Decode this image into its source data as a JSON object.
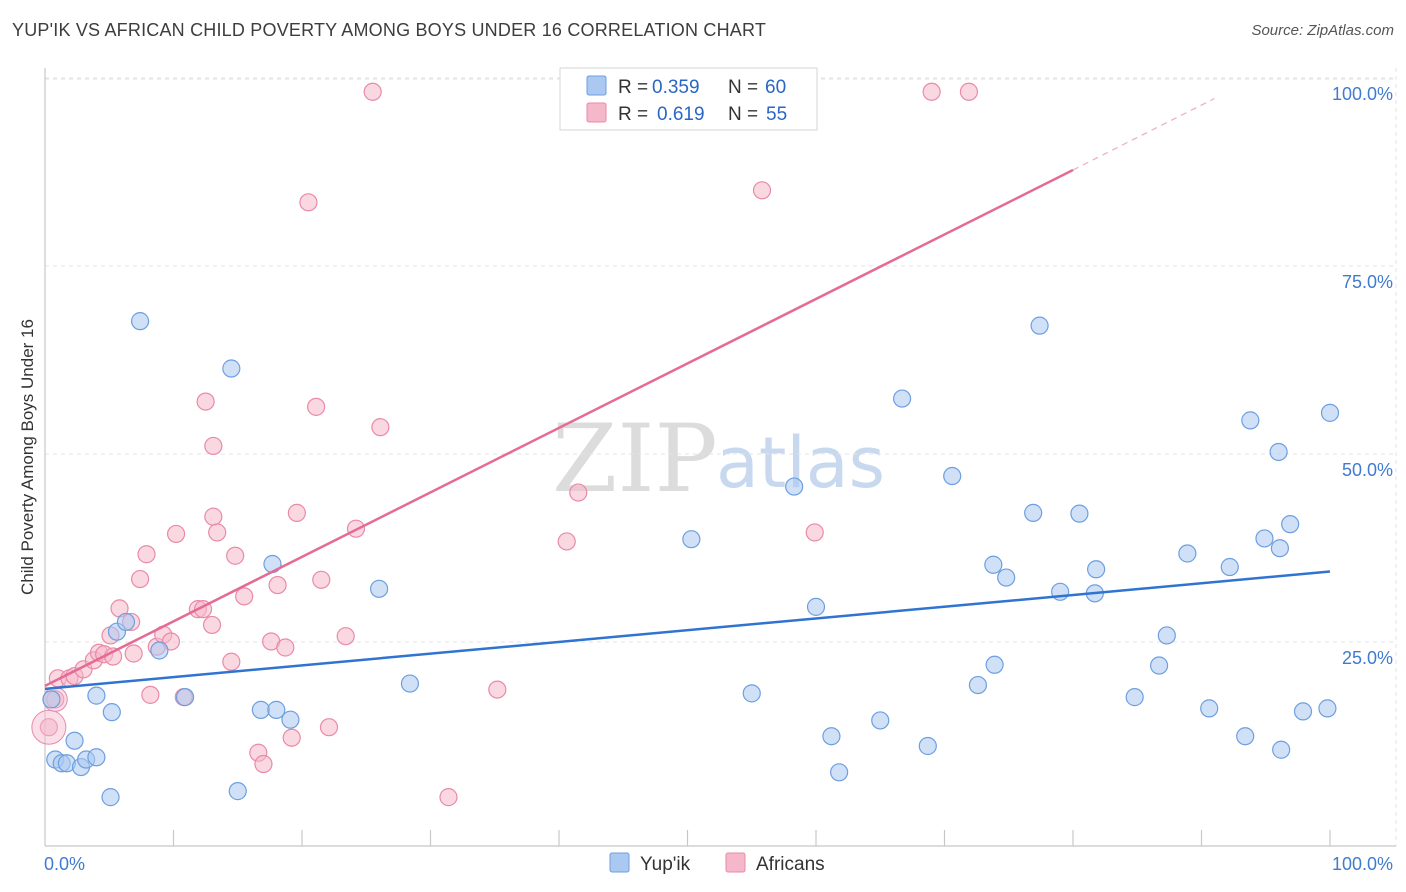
{
  "header": {
    "title": "YUP'IK VS AFRICAN CHILD POVERTY AMONG BOYS UNDER 16 CORRELATION CHART",
    "source": "Source: ZipAtlas.com"
  },
  "watermark": {
    "zip": "ZIP",
    "atlas": "atlas"
  },
  "colors": {
    "blue_fill": "#aac8f0",
    "blue_stroke": "#6d9fe0",
    "blue_line": "#2f74d0",
    "pink_fill": "#f5b8cb",
    "pink_stroke": "#e98aa8",
    "pink_line": "#e46b95",
    "tick_text": "#3f7bd0"
  },
  "legend": {
    "rows": [
      {
        "r_label": "R =",
        "r_value": "0.359",
        "n_label": "N =",
        "n_value": "60"
      },
      {
        "r_label": "R =",
        "r_value": "0.619",
        "n_label": "N =",
        "n_value": "55"
      }
    ]
  },
  "bottom_legend": [
    "Yup'ik",
    "Africans"
  ],
  "chart_data": {
    "type": "scatter",
    "title": "YUP'IK VS AFRICAN CHILD POVERTY AMONG BOYS UNDER 16 CORRELATION CHART",
    "xlabel": "",
    "ylabel": "Child Poverty Among Boys Under 16",
    "xlim": [
      0,
      100
    ],
    "ylim": [
      0,
      102
    ],
    "x_tick_labels": [
      "0.0%",
      "100.0%"
    ],
    "y_ticks": [
      25,
      50,
      75,
      100
    ],
    "y_tick_labels": [
      "25.0%",
      "50.0%",
      "75.0%",
      "100.0%"
    ],
    "grid": true,
    "legend_position": "top-center",
    "series": [
      {
        "name": "Yup'ik",
        "r": 0.359,
        "n": 60,
        "trend": {
          "x": [
            0,
            100
          ],
          "y": [
            20.9,
            36.5
          ]
        },
        "points": [
          [
            0.5,
            19.5
          ],
          [
            0.8,
            11.5
          ],
          [
            1.3,
            11
          ],
          [
            1.7,
            11
          ],
          [
            2.3,
            14
          ],
          [
            2.8,
            10.5
          ],
          [
            3.2,
            11.5
          ],
          [
            4,
            11.8
          ],
          [
            4,
            20
          ],
          [
            5.1,
            6.5
          ],
          [
            5.2,
            17.8
          ],
          [
            5.6,
            28.5
          ],
          [
            6.3,
            29.8
          ],
          [
            7.4,
            69.8
          ],
          [
            8.9,
            26
          ],
          [
            10.9,
            19.8
          ],
          [
            14.5,
            63.5
          ],
          [
            15,
            7.3
          ],
          [
            16.8,
            18.1
          ],
          [
            17.7,
            37.5
          ],
          [
            18,
            18.1
          ],
          [
            19.1,
            16.8
          ],
          [
            26,
            34.2
          ],
          [
            28.4,
            21.6
          ],
          [
            50.3,
            40.8
          ],
          [
            55,
            20.3
          ],
          [
            58.3,
            47.8
          ],
          [
            60,
            31.8
          ],
          [
            61.2,
            14.6
          ],
          [
            61.8,
            9.8
          ],
          [
            65,
            16.7
          ],
          [
            66.7,
            59.5
          ],
          [
            68.7,
            13.3
          ],
          [
            70.6,
            49.2
          ],
          [
            72.6,
            21.4
          ],
          [
            73.8,
            37.4
          ],
          [
            73.9,
            24.1
          ],
          [
            74.8,
            35.7
          ],
          [
            76.9,
            44.3
          ],
          [
            77.4,
            69.2
          ],
          [
            79,
            33.8
          ],
          [
            80.5,
            44.2
          ],
          [
            81.7,
            33.6
          ],
          [
            81.8,
            36.8
          ],
          [
            84.8,
            19.8
          ],
          [
            86.7,
            24
          ],
          [
            87.3,
            28
          ],
          [
            88.9,
            38.9
          ],
          [
            90.6,
            18.3
          ],
          [
            92.2,
            37.1
          ],
          [
            93.4,
            14.6
          ],
          [
            93.8,
            56.6
          ],
          [
            94.9,
            40.9
          ],
          [
            96,
            52.4
          ],
          [
            96.1,
            39.6
          ],
          [
            96.2,
            12.8
          ],
          [
            96.9,
            42.8
          ],
          [
            97.9,
            17.9
          ],
          [
            99.8,
            18.3
          ],
          [
            100,
            57.6
          ]
        ]
      },
      {
        "name": "Africans",
        "r": 0.619,
        "n": 55,
        "trend": {
          "x": [
            0,
            80
          ],
          "y": [
            21.3,
            89.9
          ]
        },
        "trend_dashed": {
          "x": [
            80,
            91
          ],
          "y": [
            89.9,
            99.4
          ]
        },
        "points": [
          [
            0.3,
            15.8
          ],
          [
            0.8,
            19.5
          ],
          [
            1,
            22.3
          ],
          [
            1.9,
            22.3
          ],
          [
            2.3,
            22.6
          ],
          [
            3,
            23.5
          ],
          [
            3.8,
            24.7
          ],
          [
            4.2,
            25.7
          ],
          [
            4.6,
            25.5
          ],
          [
            5.1,
            28
          ],
          [
            5.3,
            25.2
          ],
          [
            5.8,
            31.6
          ],
          [
            6.7,
            29.8
          ],
          [
            6.9,
            25.6
          ],
          [
            7.4,
            35.5
          ],
          [
            7.9,
            38.8
          ],
          [
            8.2,
            20.1
          ],
          [
            8.7,
            26.5
          ],
          [
            9.2,
            28.1
          ],
          [
            9.8,
            27.2
          ],
          [
            10.2,
            41.5
          ],
          [
            10.8,
            19.8
          ],
          [
            11.9,
            31.5
          ],
          [
            12.3,
            31.5
          ],
          [
            12.5,
            59.1
          ],
          [
            13,
            29.4
          ],
          [
            13.1,
            53.2
          ],
          [
            13.1,
            43.8
          ],
          [
            13.4,
            41.7
          ],
          [
            14.5,
            24.5
          ],
          [
            14.8,
            38.6
          ],
          [
            15.5,
            33.2
          ],
          [
            16.6,
            12.4
          ],
          [
            17,
            10.9
          ],
          [
            17.6,
            27.2
          ],
          [
            18.1,
            34.7
          ],
          [
            18.7,
            26.4
          ],
          [
            19.2,
            14.4
          ],
          [
            19.6,
            44.3
          ],
          [
            20.5,
            85.6
          ],
          [
            21.1,
            58.4
          ],
          [
            21.5,
            35.4
          ],
          [
            22.1,
            15.8
          ],
          [
            23.4,
            27.9
          ],
          [
            24.2,
            42.2
          ],
          [
            25.5,
            100.3
          ],
          [
            26.1,
            55.7
          ],
          [
            31.4,
            6.5
          ],
          [
            35.2,
            20.8
          ],
          [
            40.6,
            40.5
          ],
          [
            41.5,
            47
          ],
          [
            55.8,
            87.2
          ],
          [
            59.9,
            41.7
          ],
          [
            69,
            100.3
          ],
          [
            71.9,
            100.3
          ]
        ]
      }
    ]
  }
}
